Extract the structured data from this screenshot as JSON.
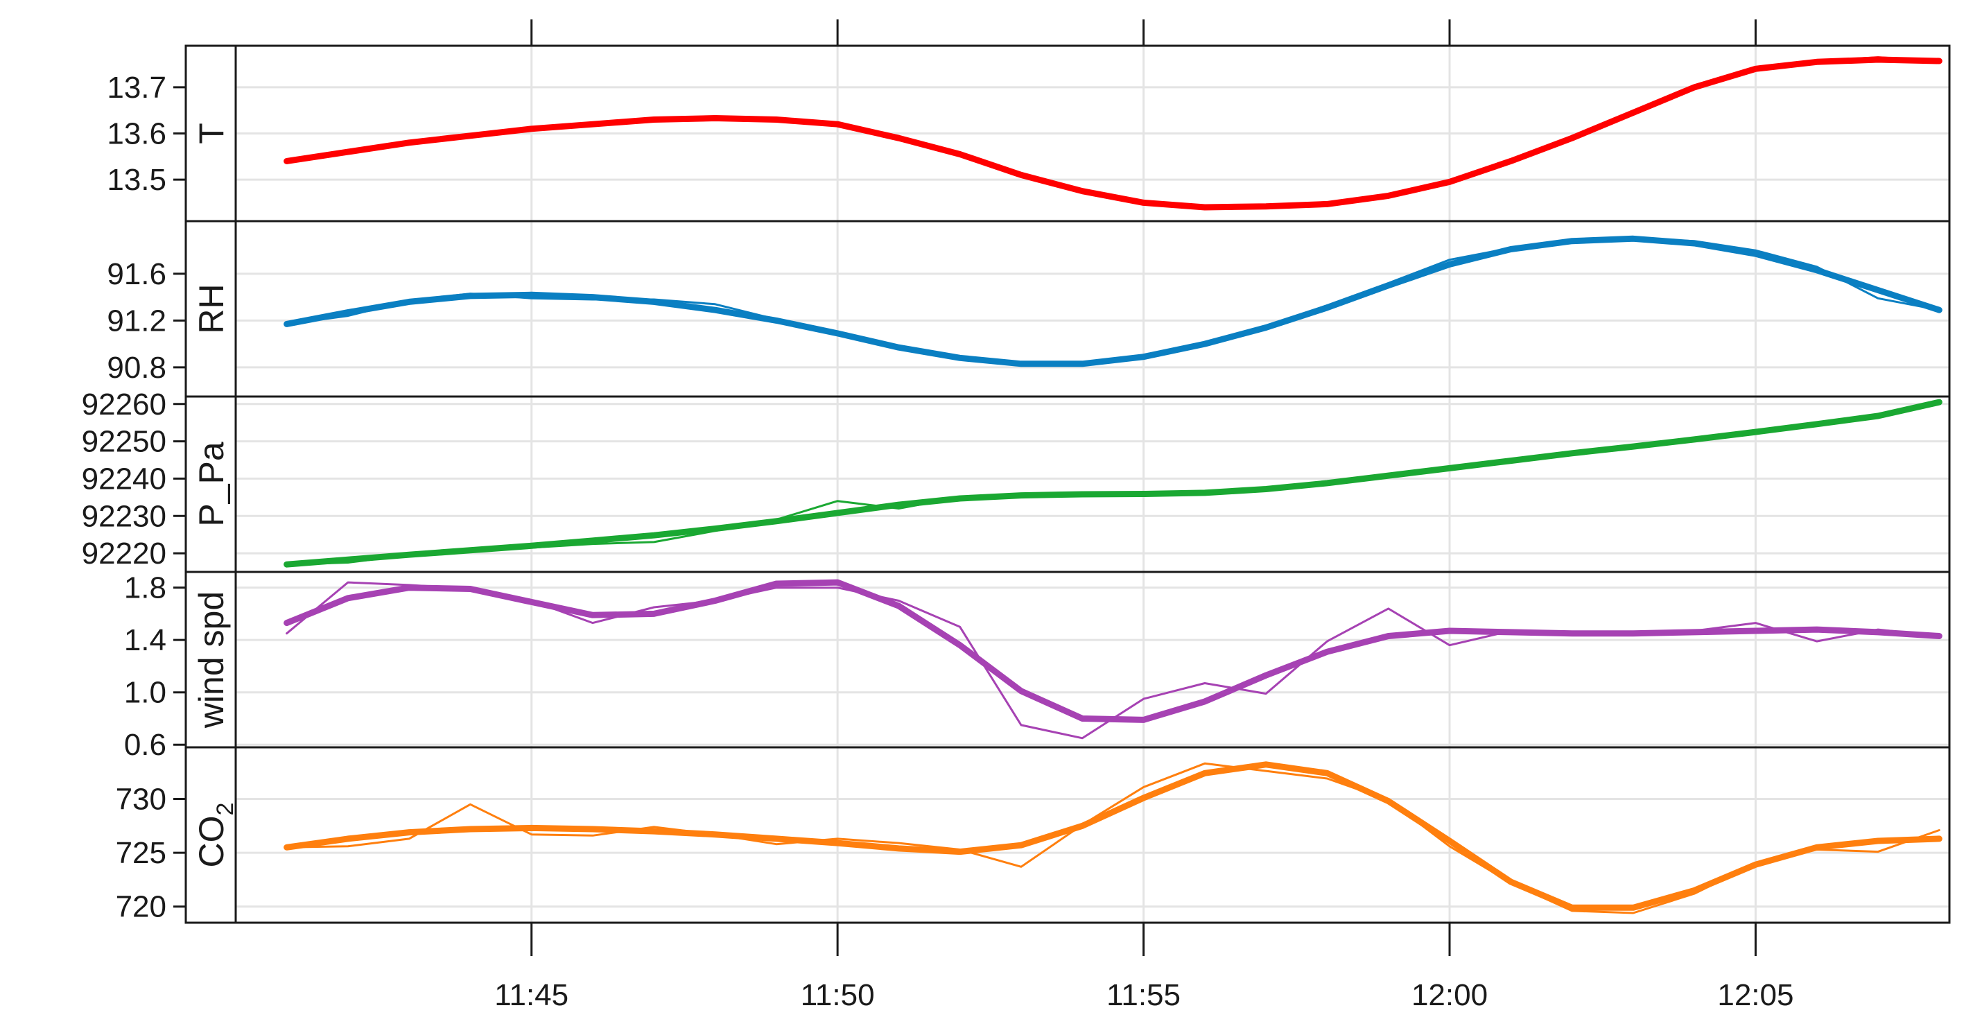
{
  "chart_data": {
    "type": "line",
    "layout": "stacked-panels",
    "x_axis": {
      "tick_labels": [
        "11:45",
        "11:50",
        "11:55",
        "12:00",
        "12:05"
      ],
      "tick_times": [
        "11:45",
        "11:50",
        "11:55",
        "12:00",
        "12:05"
      ],
      "range": [
        "11:40:10",
        "12:08:10"
      ],
      "grid": true
    },
    "panels": [
      {
        "strip": "T",
        "color": "#ff0000",
        "ylim": [
          13.41,
          13.79
        ],
        "y_ticks": [
          13.5,
          13.6,
          13.7
        ],
        "y_tick_labels": [
          "13.5",
          "13.6",
          "13.7"
        ],
        "series": [
          {
            "role": "raw",
            "x": [
              "11:41",
              "11:42",
              "11:43",
              "11:44",
              "11:45",
              "11:46",
              "11:47",
              "11:48",
              "11:49",
              "11:50",
              "11:51",
              "11:52",
              "11:53",
              "11:54",
              "11:55",
              "11:56",
              "11:57",
              "11:58",
              "11:59",
              "12:00",
              "12:01",
              "12:02",
              "12:03",
              "12:04",
              "12:05",
              "12:06",
              "12:07",
              "12:08"
            ],
            "values": [
              13.54,
              13.56,
              13.58,
              13.595,
              13.61,
              13.62,
              13.63,
              13.635,
              13.633,
              13.62,
              13.59,
              13.555,
              13.51,
              13.475,
              13.45,
              13.44,
              13.44,
              13.445,
              13.465,
              13.495,
              13.54,
              13.59,
              13.645,
              13.7,
              13.74,
              13.757,
              13.765,
              13.757
            ]
          },
          {
            "role": "smooth",
            "x": [
              "11:41",
              "11:42",
              "11:43",
              "11:44",
              "11:45",
              "11:46",
              "11:47",
              "11:48",
              "11:49",
              "11:50",
              "11:51",
              "11:52",
              "11:53",
              "11:54",
              "11:55",
              "11:56",
              "11:57",
              "11:58",
              "11:59",
              "12:00",
              "12:01",
              "12:02",
              "12:03",
              "12:04",
              "12:05",
              "12:06",
              "12:07",
              "12:08"
            ],
            "values": [
              13.54,
              13.56,
              13.58,
              13.595,
              13.61,
              13.62,
              13.63,
              13.633,
              13.63,
              13.62,
              13.59,
              13.555,
              13.51,
              13.475,
              13.45,
              13.44,
              13.442,
              13.447,
              13.465,
              13.495,
              13.54,
              13.59,
              13.645,
              13.7,
              13.74,
              13.755,
              13.76,
              13.757
            ]
          }
        ]
      },
      {
        "strip": "RH",
        "color": "#0a7fc2",
        "ylim": [
          90.55,
          92.05
        ],
        "y_ticks": [
          90.8,
          91.2,
          91.6
        ],
        "y_tick_labels": [
          "90.8",
          "91.2",
          "91.6"
        ],
        "series": [
          {
            "role": "raw",
            "x": [
              "11:41",
              "11:42",
              "11:43",
              "11:44",
              "11:45",
              "11:46",
              "11:47",
              "11:48",
              "11:49",
              "11:50",
              "11:51",
              "11:52",
              "11:53",
              "11:54",
              "11:55",
              "11:56",
              "11:57",
              "11:58",
              "11:59",
              "12:00",
              "12:01",
              "12:02",
              "12:03",
              "12:04",
              "12:05",
              "12:06",
              "12:07",
              "12:08"
            ],
            "values": [
              91.17,
              91.24,
              91.37,
              91.43,
              91.39,
              91.38,
              91.38,
              91.34,
              91.21,
              91.1,
              90.98,
              90.89,
              90.82,
              90.82,
              90.88,
              91.0,
              91.15,
              91.33,
              91.52,
              91.72,
              91.82,
              91.88,
              91.9,
              91.88,
              91.8,
              91.66,
              91.39,
              91.29
            ]
          },
          {
            "role": "smooth",
            "x": [
              "11:41",
              "11:42",
              "11:43",
              "11:44",
              "11:45",
              "11:46",
              "11:47",
              "11:48",
              "11:49",
              "11:50",
              "11:51",
              "11:52",
              "11:53",
              "11:54",
              "11:55",
              "11:56",
              "11:57",
              "11:58",
              "11:59",
              "12:00",
              "12:01",
              "12:02",
              "12:03",
              "12:04",
              "12:05",
              "12:06",
              "12:07",
              "12:08"
            ],
            "values": [
              91.17,
              91.27,
              91.36,
              91.41,
              91.42,
              91.4,
              91.36,
              91.29,
              91.2,
              91.09,
              90.97,
              90.88,
              90.83,
              90.83,
              90.89,
              91.0,
              91.14,
              91.31,
              91.5,
              91.68,
              91.81,
              91.88,
              91.9,
              91.86,
              91.77,
              91.63,
              91.46,
              91.29
            ]
          }
        ]
      },
      {
        "strip": "P_Pa",
        "color": "#1aa832",
        "ylim": [
          92215,
          92262
        ],
        "y_ticks": [
          92220,
          92230,
          92240,
          92250,
          92260
        ],
        "y_tick_labels": [
          "92220",
          "92230",
          "92240",
          "92250",
          "92260"
        ],
        "series": [
          {
            "role": "raw",
            "x": [
              "11:41",
              "11:42",
              "11:43",
              "11:44",
              "11:45",
              "11:46",
              "11:47",
              "11:48",
              "11:49",
              "11:50",
              "11:51",
              "11:52",
              "11:53",
              "11:54",
              "11:55",
              "11:56",
              "11:57",
              "11:58",
              "11:59",
              "12:00",
              "12:01",
              "12:02",
              "12:03",
              "12:04",
              "12:05",
              "12:06",
              "12:07",
              "12:08"
            ],
            "values": [
              92217,
              92217.5,
              92219.5,
              92220.5,
              92221.5,
              92222.5,
              92223,
              92226,
              92229,
              92234,
              92232,
              92235,
              92235.5,
              92236,
              92236,
              92236,
              92237,
              92239,
              92241,
              92243,
              92245,
              92247,
              92249,
              92251,
              92253,
              92255,
              92257,
              92260
            ]
          },
          {
            "role": "smooth",
            "x": [
              "11:41",
              "11:42",
              "11:43",
              "11:44",
              "11:45",
              "11:46",
              "11:47",
              "11:48",
              "11:49",
              "11:50",
              "11:51",
              "11:52",
              "11:53",
              "11:54",
              "11:55",
              "11:56",
              "11:57",
              "11:58",
              "11:59",
              "12:00",
              "12:01",
              "12:02",
              "12:03",
              "12:04",
              "12:05",
              "12:06",
              "12:07",
              "12:08"
            ],
            "values": [
              92217,
              92218.3,
              92219.6,
              92220.8,
              92222,
              92223.4,
              92224.8,
              92226.6,
              92228.6,
              92230.8,
              92233,
              92234.7,
              92235.5,
              92235.8,
              92235.9,
              92236.2,
              92237.2,
              92238.8,
              92240.8,
              92242.8,
              92244.8,
              92246.8,
              92248.6,
              92250.5,
              92252.5,
              92254.6,
              92256.8,
              92260.5
            ]
          }
        ]
      },
      {
        "strip": "wind spd",
        "color": "#a642b3",
        "ylim": [
          0.58,
          1.92
        ],
        "y_ticks": [
          0.6,
          1.0,
          1.4,
          1.8
        ],
        "y_tick_labels": [
          "0.6",
          "1.0",
          "1.4",
          "1.8"
        ],
        "series": [
          {
            "role": "raw",
            "x": [
              "11:41",
              "11:42",
              "11:43",
              "11:44",
              "11:45",
              "11:46",
              "11:47",
              "11:48",
              "11:49",
              "11:50",
              "11:51",
              "11:52",
              "11:53",
              "11:54",
              "11:55",
              "11:56",
              "11:57",
              "11:58",
              "11:59",
              "12:00",
              "12:01",
              "12:02",
              "12:03",
              "12:04",
              "12:05",
              "12:06",
              "12:07",
              "12:08"
            ],
            "values": [
              1.45,
              1.84,
              1.82,
              1.79,
              1.7,
              1.53,
              1.65,
              1.7,
              1.8,
              1.8,
              1.7,
              1.5,
              0.75,
              0.65,
              0.95,
              1.07,
              0.99,
              1.39,
              1.64,
              1.36,
              1.47,
              1.46,
              1.46,
              1.47,
              1.53,
              1.39,
              1.48,
              1.43
            ]
          },
          {
            "role": "smooth",
            "x": [
              "11:41",
              "11:42",
              "11:43",
              "11:44",
              "11:45",
              "11:46",
              "11:47",
              "11:48",
              "11:49",
              "11:50",
              "11:51",
              "11:52",
              "11:53",
              "11:54",
              "11:55",
              "11:56",
              "11:57",
              "11:58",
              "11:59",
              "12:00",
              "12:01",
              "12:02",
              "12:03",
              "12:04",
              "12:05",
              "12:06",
              "12:07",
              "12:08"
            ],
            "values": [
              1.53,
              1.72,
              1.8,
              1.79,
              1.69,
              1.59,
              1.6,
              1.7,
              1.83,
              1.84,
              1.66,
              1.36,
              1.01,
              0.8,
              0.79,
              0.93,
              1.13,
              1.31,
              1.43,
              1.47,
              1.46,
              1.45,
              1.45,
              1.46,
              1.47,
              1.48,
              1.46,
              1.43
            ]
          }
        ]
      },
      {
        "strip": "CO2",
        "strip_label_main": "CO",
        "strip_label_sub": "2",
        "color": "#ff7f0e",
        "ylim": [
          718.5,
          734.8
        ],
        "y_ticks": [
          720,
          725,
          730
        ],
        "y_tick_labels": [
          "720",
          "725",
          "730"
        ],
        "series": [
          {
            "role": "raw",
            "x": [
              "11:41",
              "11:42",
              "11:43",
              "11:44",
              "11:45",
              "11:46",
              "11:47",
              "11:48",
              "11:49",
              "11:50",
              "11:51",
              "11:52",
              "11:53",
              "11:54",
              "11:55",
              "11:56",
              "11:57",
              "11:58",
              "11:59",
              "12:00",
              "12:01",
              "12:02",
              "12:03",
              "12:04",
              "12:05",
              "12:06",
              "12:07",
              "12:08"
            ],
            "values": [
              725.5,
              725.6,
              726.3,
              729.5,
              726.7,
              726.6,
              727.4,
              726.7,
              725.8,
              726.3,
              725.9,
              725.3,
              723.7,
              727.6,
              731.1,
              733.3,
              732.6,
              731.9,
              729.9,
              725.6,
              722.2,
              719.6,
              719.4,
              721.2,
              724,
              725.3,
              725.1,
              727.1
            ]
          },
          {
            "role": "smooth",
            "x": [
              "11:41",
              "11:42",
              "11:43",
              "11:44",
              "11:45",
              "11:46",
              "11:47",
              "11:48",
              "11:49",
              "11:50",
              "11:51",
              "11:52",
              "11:53",
              "11:54",
              "11:55",
              "11:56",
              "11:57",
              "11:58",
              "11:59",
              "12:00",
              "12:01",
              "12:02",
              "12:03",
              "12:04",
              "12:05",
              "12:06",
              "12:07",
              "12:08"
            ],
            "values": [
              725.5,
              726.3,
              726.9,
              727.2,
              727.3,
              727.2,
              727.0,
              726.7,
              726.3,
              725.9,
              725.4,
              725.1,
              725.7,
              727.5,
              730.1,
              732.4,
              733.2,
              732.4,
              729.8,
              726.1,
              722.3,
              719.9,
              719.9,
              721.5,
              723.9,
              725.5,
              726.1,
              726.3
            ]
          }
        ]
      }
    ]
  }
}
